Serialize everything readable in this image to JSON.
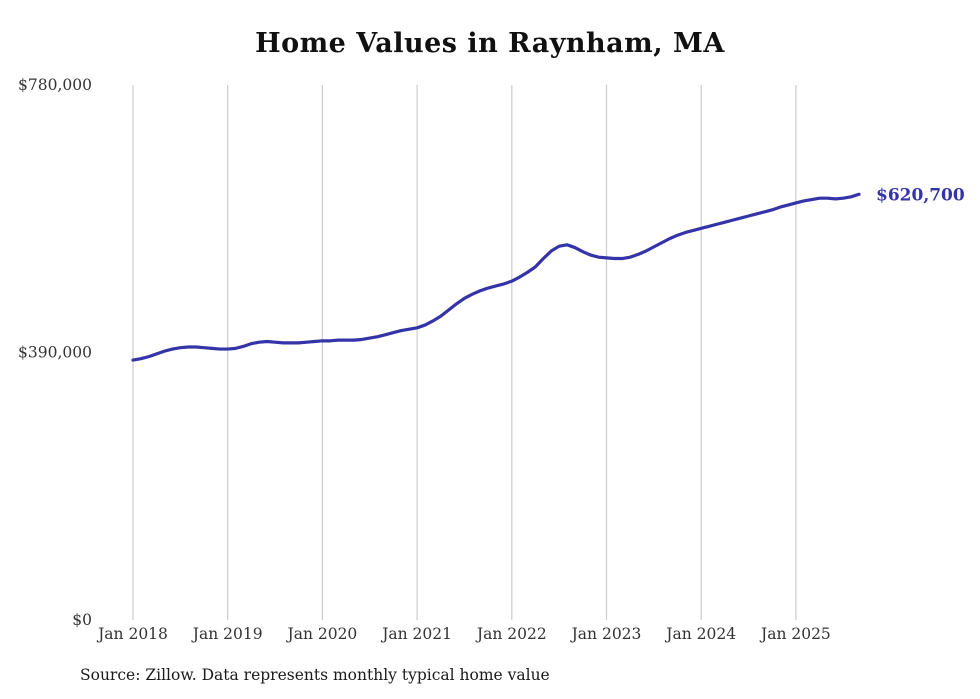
{
  "chart_data": {
    "type": "line",
    "title": "Home Values in Raynham, MA",
    "source_note": "Source: Zillow. Data represents monthly typical home value",
    "series_name": "Typical home value",
    "start_month": "2018-01",
    "end_month": "2025-09",
    "x_tick_labels": [
      "Jan 2018",
      "Jan 2019",
      "Jan 2020",
      "Jan 2021",
      "Jan 2022",
      "Jan 2023",
      "Jan 2024",
      "Jan 2025"
    ],
    "x_tick_month_indices": [
      0,
      12,
      24,
      36,
      48,
      60,
      72,
      84
    ],
    "y_ticks": [
      {
        "label": "$0",
        "value": 0
      },
      {
        "label": "$390,000",
        "value": 390000
      },
      {
        "label": "$780,000",
        "value": 780000
      }
    ],
    "ylim": [
      0,
      780000
    ],
    "grid": "vertical-only",
    "legend": "none",
    "end_label": "$620,700",
    "end_value": 620700,
    "values": [
      379000,
      381000,
      384000,
      388000,
      392000,
      395000,
      397000,
      398000,
      398000,
      397000,
      396000,
      395000,
      395000,
      396000,
      399000,
      403000,
      405000,
      406000,
      405000,
      404000,
      404000,
      404000,
      405000,
      406000,
      407000,
      407000,
      408000,
      408000,
      408000,
      409000,
      411000,
      413000,
      416000,
      419000,
      422000,
      424000,
      426000,
      430000,
      436000,
      443000,
      452000,
      461000,
      469000,
      475000,
      480000,
      484000,
      487000,
      490000,
      494000,
      500000,
      507000,
      515000,
      527000,
      538000,
      545000,
      547000,
      543000,
      537000,
      532000,
      529000,
      528000,
      527000,
      527000,
      529000,
      533000,
      538000,
      544000,
      550000,
      556000,
      561000,
      565000,
      568000,
      571000,
      574000,
      577000,
      580000,
      583000,
      586000,
      589000,
      592000,
      595000,
      598000,
      602000,
      605000,
      608000,
      611000,
      613000,
      615000,
      615000,
      614000,
      615000,
      617000,
      620700
    ],
    "colors": {
      "line": "#3533a8",
      "end_label": "#3533a8",
      "gridline": "#cccccc",
      "axis_text": "#333333",
      "title_text": "#111111"
    }
  }
}
